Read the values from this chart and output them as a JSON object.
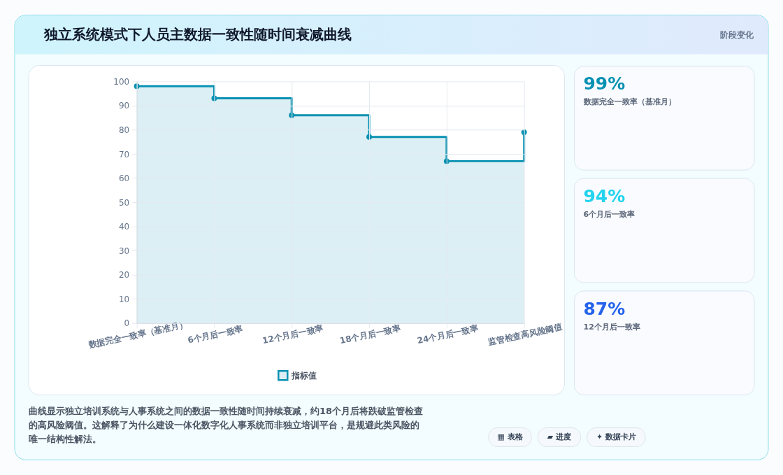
{
  "chart_data": [
    {
      "type": "area",
      "title": "独立系统模式下人员主数据一致性随时间衰减曲线",
      "categories": [
        "数据完全一致率（基准月）",
        "6个月后一致率",
        "12个月后一致率",
        "18个月后一致率",
        "24个月后一致率",
        "监管检查高风险阈值"
      ],
      "series": [
        {
          "name": "指标值",
          "type": "step",
          "color": "#0891b2",
          "values": [
            98,
            93,
            86,
            77,
            67,
            79
          ]
        }
      ],
      "ylim": [
        0,
        100
      ],
      "yticks": [
        0,
        10,
        20,
        30,
        40,
        50,
        60,
        70,
        80,
        90,
        100
      ],
      "grid": true,
      "legend": "bottom",
      "marker": "circle",
      "line_style": "solid",
      "annotations": [
        "阶段变化",
        "曲线显示独立培训系统与人事系统之间的数据一致性随时间持续衰减，约18个月后将跌破监管检查的高风险阈值。这解释了为什么建设一体化数字化人事系统而非独立培训平台，是规避此类风险的唯一结构性解法。",
        "▦ 表格",
        "▰ 进度",
        "✦ 数据卡片"
      ]
    },
    {
      "type": "other",
      "annotations": [
        "99%",
        "数据完全一致率（基准月）",
        "94%",
        "6个月后一致率",
        "87%",
        "12个月后一致率"
      ]
    }
  ]
}
